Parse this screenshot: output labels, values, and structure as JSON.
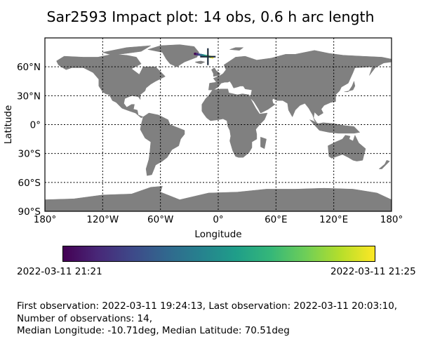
{
  "title": "Sar2593 Impact plot: 14 obs, 0.6 h arc length",
  "map": {
    "xlabel": "Longitude",
    "ylabel": "Latitude",
    "lon_ticks": [
      "180°",
      "120°W",
      "60°W",
      "0°",
      "60°E",
      "120°E",
      "180°"
    ],
    "lat_ticks": [
      "60°N",
      "30°N",
      "0°",
      "30°S",
      "60°S",
      "90°S"
    ],
    "land_color": "#808080",
    "ocean_color": "#ffffff",
    "gridlines": true
  },
  "chart_data": {
    "type": "scatter",
    "x_range_deg": [
      -180,
      180
    ],
    "y_range_deg": [
      -90,
      90
    ],
    "median_point": {
      "lon": -10.71,
      "lat": 70.51,
      "marker": "plus"
    },
    "track": [
      {
        "lon": -24.0,
        "lat": 73.5,
        "color": "#440154"
      },
      {
        "lon": -22.0,
        "lat": 73.1,
        "color": "#482677"
      },
      {
        "lon": -20.0,
        "lat": 72.7,
        "color": "#3e4a89"
      },
      {
        "lon": -18.0,
        "lat": 72.3,
        "color": "#31688e"
      },
      {
        "lon": -16.0,
        "lat": 71.9,
        "color": "#26828e"
      },
      {
        "lon": -14.0,
        "lat": 71.5,
        "color": "#1f9e89"
      },
      {
        "lon": -12.0,
        "lat": 71.1,
        "color": "#35b779"
      },
      {
        "lon": -10.0,
        "lat": 70.7,
        "color": "#6ece58"
      },
      {
        "lon": -8.0,
        "lat": 70.3,
        "color": "#b5de2b"
      },
      {
        "lon": -6.0,
        "lat": 69.9,
        "color": "#fde725"
      }
    ],
    "colormap": "viridis"
  },
  "colorbar": {
    "min_label": "2022-03-11 21:21",
    "max_label": "2022-03-11 21:25",
    "stops": [
      "#440154",
      "#482878",
      "#3e4989",
      "#31688e",
      "#26828e",
      "#1f9e89",
      "#35b779",
      "#6ece58",
      "#b5de2b",
      "#fde725"
    ]
  },
  "footer": {
    "line1": "First observation: 2022-03-11 19:24:13, Last observation: 2022-03-11 20:03:10,",
    "line2": "Number of observations: 14,",
    "line3": "Median Longitude: -10.71deg, Median Latitude: 70.51deg"
  }
}
